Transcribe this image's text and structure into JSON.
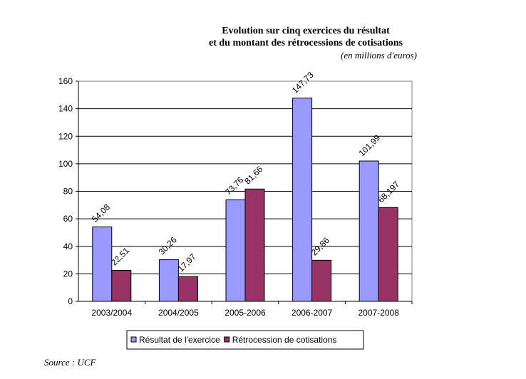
{
  "chart_data": {
    "type": "bar",
    "title": "Evolution sur cinq exercices du résultat",
    "title_line2": "et du montant des rétrocessions de cotisations",
    "subtitle": "(en millions d'euros)",
    "categories": [
      "2003/2004",
      "2004/2005",
      "2005-2006",
      "2006-2007",
      "2007-2008"
    ],
    "series": [
      {
        "name": "Résultat de l'exercice",
        "color": "#9999ff",
        "values": [
          54.08,
          30.26,
          73.76,
          147.73,
          101.99
        ],
        "labels": [
          "54,08",
          "30,26",
          "73,76",
          "147,73",
          "101,99"
        ]
      },
      {
        "name": "Rétrocession de cotisations",
        "color": "#993366",
        "values": [
          22.51,
          17.97,
          81.66,
          29.86,
          68.197
        ],
        "labels": [
          "22,51",
          "17,97",
          "81,66",
          "29,86",
          "68,197"
        ]
      }
    ],
    "ylim": [
      0,
      160
    ],
    "yticks": [
      0,
      20,
      40,
      60,
      80,
      100,
      120,
      140,
      160
    ],
    "grid": true,
    "legend_position": "bottom"
  },
  "source": "Source : UCF"
}
